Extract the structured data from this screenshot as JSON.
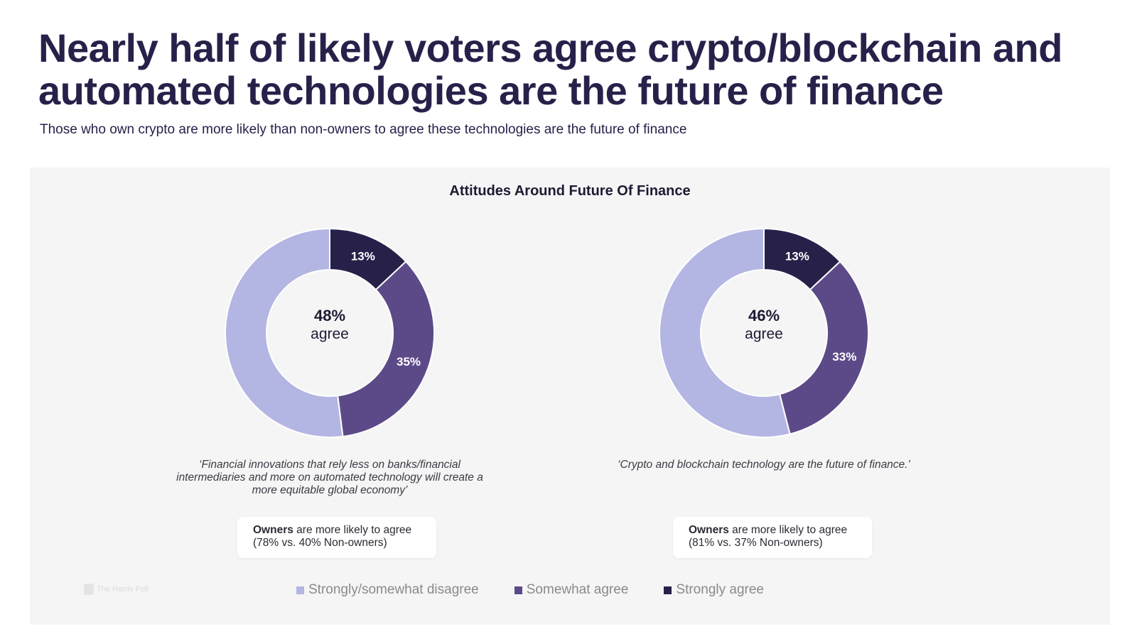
{
  "header": {
    "title": "Nearly half of likely voters agree crypto/blockchain and automated technologies are the future of finance",
    "subtitle": "Those who own crypto are more likely than non-owners to agree these technologies are the future of finance"
  },
  "colors": {
    "disagree": "#b3b6e3",
    "somewhat": "#5c4a88",
    "strongly": "#27214a",
    "panel_bg": "#f5f5f5"
  },
  "chart_data": {
    "type": "pie",
    "title": "Attitudes Around Future Of Finance",
    "legend": [
      "Strongly/somewhat disagree",
      "Somewhat agree",
      "Strongly agree"
    ],
    "legend_position": "bottom",
    "charts": [
      {
        "center_value": "48%",
        "center_label": "agree",
        "slices": [
          {
            "name": "Strongly agree",
            "value": 13,
            "label": "13%"
          },
          {
            "name": "Somewhat agree",
            "value": 35,
            "label": "35%"
          },
          {
            "name": "Strongly/somewhat disagree",
            "value": 52,
            "label": ""
          }
        ],
        "quote": "‘Financial innovations that rely less on banks/financial intermediaries and more on automated technology will create a more equitable global economy’",
        "callout_bold": "Owners",
        "callout_line1": " are more likely to agree",
        "callout_line2": "(78% vs. 40% Non-owners)"
      },
      {
        "center_value": "46%",
        "center_label": "agree",
        "slices": [
          {
            "name": "Strongly agree",
            "value": 13,
            "label": "13%"
          },
          {
            "name": "Somewhat agree",
            "value": 33,
            "label": "33%"
          },
          {
            "name": "Strongly/somewhat disagree",
            "value": 54,
            "label": ""
          }
        ],
        "quote": "‘Crypto and blockchain technology are the future of finance.’",
        "callout_bold": "Owners",
        "callout_line1": " are more likely to agree",
        "callout_line2": "(81% vs. 37% Non-owners)"
      }
    ]
  },
  "footer": {
    "logo_text": "The Harris Poll"
  }
}
